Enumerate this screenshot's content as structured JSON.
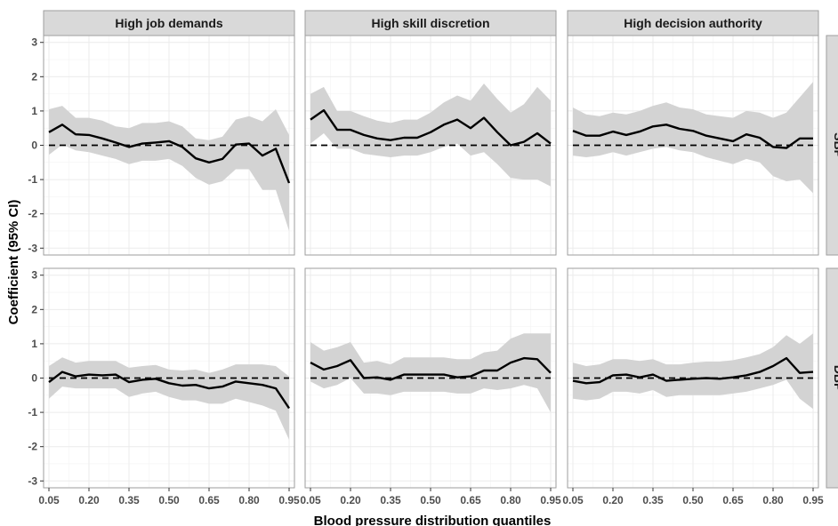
{
  "chart_data": {
    "type": "line",
    "ylabel": "Coefficient (95% CI)",
    "xlabel": "Blood pressure distribution quantiles",
    "columns": [
      "High job demands",
      "High skill discretion",
      "High decision authority"
    ],
    "rows": [
      "SBP",
      "DBP"
    ],
    "x": [
      0.05,
      0.1,
      0.15,
      0.2,
      0.25,
      0.3,
      0.35,
      0.4,
      0.45,
      0.5,
      0.55,
      0.6,
      0.65,
      0.7,
      0.75,
      0.8,
      0.85,
      0.9,
      0.95
    ],
    "xticks": [
      0.05,
      0.2,
      0.35,
      0.5,
      0.65,
      0.8,
      0.95
    ],
    "xtick_labels": [
      "0.05",
      "0.20",
      "0.35",
      "0.50",
      "0.65",
      "0.80",
      "0.95"
    ],
    "yticks": [
      -3,
      -2,
      -1,
      0,
      1,
      2,
      3
    ],
    "ytick_labels": [
      "-3",
      "-2",
      "-1",
      "0",
      "1",
      "2",
      "3"
    ],
    "ylim": [
      -3.2,
      3.2
    ],
    "xlim": [
      0.03,
      0.97
    ],
    "reference_line": 0,
    "grid": true,
    "colors": {
      "line": "#000000",
      "band": "#d3d3d3",
      "strip": "#d9d9d9",
      "grid": "#ebebeb",
      "panel_border": "#9e9e9e"
    },
    "panels": [
      {
        "row": "SBP",
        "column": "High job demands",
        "coef": [
          0.38,
          0.6,
          0.32,
          0.3,
          0.2,
          0.08,
          -0.05,
          0.05,
          0.08,
          0.12,
          -0.05,
          -0.38,
          -0.5,
          -0.4,
          0.02,
          0.05,
          -0.3,
          -0.1,
          -1.1
        ],
        "lower": [
          -0.28,
          0.02,
          -0.15,
          -0.2,
          -0.3,
          -0.4,
          -0.55,
          -0.45,
          -0.45,
          -0.4,
          -0.6,
          -0.95,
          -1.15,
          -1.05,
          -0.7,
          -0.7,
          -1.3,
          -1.3,
          -2.5
        ],
        "upper": [
          1.05,
          1.15,
          0.8,
          0.8,
          0.72,
          0.55,
          0.5,
          0.65,
          0.65,
          0.7,
          0.55,
          0.2,
          0.15,
          0.25,
          0.75,
          0.85,
          0.7,
          1.05,
          0.3
        ]
      },
      {
        "row": "SBP",
        "column": "High skill discretion",
        "coef": [
          0.75,
          1.02,
          0.45,
          0.45,
          0.3,
          0.2,
          0.15,
          0.22,
          0.22,
          0.38,
          0.6,
          0.75,
          0.5,
          0.8,
          0.38,
          0.0,
          0.1,
          0.35,
          0.05
        ],
        "lower": [
          0.05,
          0.35,
          -0.1,
          -0.1,
          -0.25,
          -0.3,
          -0.35,
          -0.3,
          -0.3,
          -0.2,
          -0.05,
          0.05,
          -0.3,
          -0.2,
          -0.55,
          -0.95,
          -1.0,
          -1.0,
          -1.2
        ],
        "upper": [
          1.5,
          1.7,
          1.0,
          1.0,
          0.85,
          0.72,
          0.65,
          0.75,
          0.75,
          0.95,
          1.25,
          1.45,
          1.3,
          1.8,
          1.35,
          0.95,
          1.2,
          1.7,
          1.3
        ]
      },
      {
        "row": "SBP",
        "column": "High decision authority",
        "coef": [
          0.42,
          0.28,
          0.28,
          0.4,
          0.3,
          0.4,
          0.55,
          0.6,
          0.48,
          0.42,
          0.28,
          0.2,
          0.12,
          0.32,
          0.22,
          -0.05,
          -0.08,
          0.2,
          0.2
        ],
        "lower": [
          -0.3,
          -0.35,
          -0.3,
          -0.2,
          -0.3,
          -0.2,
          -0.1,
          -0.05,
          -0.15,
          -0.2,
          -0.35,
          -0.45,
          -0.55,
          -0.4,
          -0.5,
          -0.9,
          -1.05,
          -1.0,
          -1.4
        ],
        "upper": [
          1.1,
          0.9,
          0.85,
          0.95,
          0.9,
          1.0,
          1.15,
          1.25,
          1.1,
          1.05,
          0.9,
          0.85,
          0.8,
          1.0,
          0.95,
          0.8,
          0.95,
          1.4,
          1.85
        ]
      },
      {
        "row": "DBP",
        "column": "High job demands",
        "coef": [
          -0.12,
          0.18,
          0.05,
          0.1,
          0.08,
          0.1,
          -0.12,
          -0.05,
          -0.02,
          -0.15,
          -0.22,
          -0.2,
          -0.3,
          -0.25,
          -0.1,
          -0.15,
          -0.2,
          -0.3,
          -0.88
        ],
        "lower": [
          -0.6,
          -0.25,
          -0.3,
          -0.3,
          -0.3,
          -0.3,
          -0.55,
          -0.45,
          -0.4,
          -0.55,
          -0.65,
          -0.65,
          -0.75,
          -0.75,
          -0.6,
          -0.7,
          -0.8,
          -0.95,
          -1.8
        ],
        "upper": [
          0.35,
          0.6,
          0.45,
          0.5,
          0.5,
          0.5,
          0.3,
          0.35,
          0.38,
          0.25,
          0.22,
          0.25,
          0.15,
          0.25,
          0.4,
          0.4,
          0.4,
          0.35,
          0.05
        ]
      },
      {
        "row": "DBP",
        "column": "High skill discretion",
        "coef": [
          0.45,
          0.25,
          0.35,
          0.52,
          0.0,
          0.02,
          -0.05,
          0.1,
          0.1,
          0.1,
          0.1,
          0.02,
          0.05,
          0.22,
          0.22,
          0.45,
          0.58,
          0.55,
          0.15
        ],
        "lower": [
          -0.1,
          -0.3,
          -0.2,
          0.0,
          -0.45,
          -0.45,
          -0.5,
          -0.4,
          -0.4,
          -0.4,
          -0.4,
          -0.45,
          -0.45,
          -0.3,
          -0.35,
          -0.3,
          -0.2,
          -0.3,
          -1.0
        ],
        "upper": [
          1.05,
          0.8,
          0.9,
          1.05,
          0.45,
          0.5,
          0.4,
          0.6,
          0.6,
          0.6,
          0.6,
          0.55,
          0.55,
          0.75,
          0.8,
          1.15,
          1.3,
          1.3,
          1.3
        ]
      },
      {
        "row": "DBP",
        "column": "High decision authority",
        "coef": [
          -0.08,
          -0.15,
          -0.12,
          0.08,
          0.1,
          0.02,
          0.1,
          -0.08,
          -0.05,
          -0.02,
          0.0,
          -0.02,
          0.02,
          0.08,
          0.18,
          0.35,
          0.58,
          0.15,
          0.18
        ],
        "lower": [
          -0.6,
          -0.65,
          -0.6,
          -0.4,
          -0.4,
          -0.45,
          -0.35,
          -0.55,
          -0.5,
          -0.5,
          -0.5,
          -0.5,
          -0.45,
          -0.4,
          -0.3,
          -0.2,
          -0.05,
          -0.6,
          -0.9
        ],
        "upper": [
          0.45,
          0.35,
          0.4,
          0.55,
          0.55,
          0.5,
          0.55,
          0.4,
          0.4,
          0.45,
          0.48,
          0.48,
          0.52,
          0.6,
          0.7,
          0.9,
          1.25,
          1.0,
          1.3
        ]
      }
    ]
  }
}
